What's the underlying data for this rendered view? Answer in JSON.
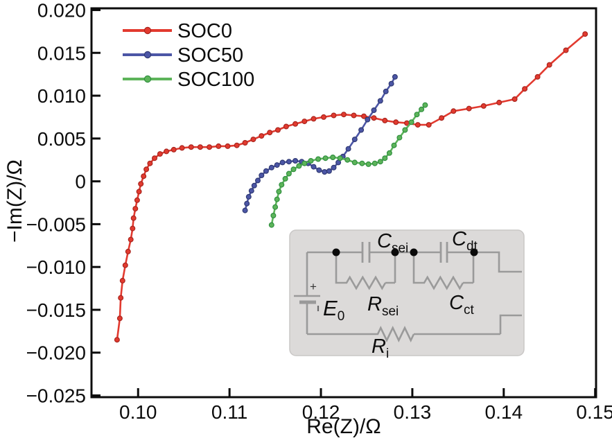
{
  "chart_data": {
    "type": "line",
    "title": "",
    "xlabel": "Re(Z)/Ω",
    "ylabel": "−Im(Z)/Ω",
    "xlim": [
      0.0949,
      0.1501
    ],
    "ylim": [
      -0.0252,
      0.0202
    ],
    "grid": false,
    "legend_position": "top-left",
    "x_ticks": [
      0.1,
      0.11,
      0.12,
      0.13,
      0.14,
      0.15
    ],
    "x_tick_labels": [
      "0.10",
      "0.11",
      "0.12",
      "0.13",
      "0.14",
      "0.15"
    ],
    "y_ticks": [
      0.02,
      0.015,
      0.01,
      0.005,
      0,
      -0.005,
      -0.01,
      -0.015,
      -0.02,
      -0.025
    ],
    "y_tick_labels": [
      "0.020",
      "0.015",
      "0.010",
      "0.005",
      "0",
      "−0.005",
      "−0.010",
      "−0.015",
      "−0.020",
      "−0.025"
    ],
    "series": [
      {
        "name": "SOC0",
        "color": "#e23a2f",
        "edge": "#a8251e",
        "points": [
          [
            0.0977,
            -0.0185
          ],
          [
            0.098,
            -0.016
          ],
          [
            0.0981,
            -0.0136
          ],
          [
            0.0983,
            -0.0116
          ],
          [
            0.0986,
            -0.0098
          ],
          [
            0.0989,
            -0.0082
          ],
          [
            0.0992,
            -0.0068
          ],
          [
            0.0994,
            -0.0055
          ],
          [
            0.0995,
            -0.0043
          ],
          [
            0.0997,
            -0.0032
          ],
          [
            0.0999,
            -0.0022
          ],
          [
            0.1001,
            -0.0012
          ],
          [
            0.1003,
            -0.0003
          ],
          [
            0.1006,
            0.0006
          ],
          [
            0.1009,
            0.0014
          ],
          [
            0.1013,
            0.0021
          ],
          [
            0.1018,
            0.0027
          ],
          [
            0.1024,
            0.0032
          ],
          [
            0.1031,
            0.0035
          ],
          [
            0.1039,
            0.0037
          ],
          [
            0.1048,
            0.0039
          ],
          [
            0.1058,
            0.004
          ],
          [
            0.1068,
            0.004
          ],
          [
            0.1078,
            0.004
          ],
          [
            0.1088,
            0.0041
          ],
          [
            0.1098,
            0.0041
          ],
          [
            0.1108,
            0.0042
          ],
          [
            0.1117,
            0.0045
          ],
          [
            0.1126,
            0.0049
          ],
          [
            0.1135,
            0.0053
          ],
          [
            0.1144,
            0.0057
          ],
          [
            0.1153,
            0.006
          ],
          [
            0.1162,
            0.0064
          ],
          [
            0.1172,
            0.0067
          ],
          [
            0.1182,
            0.007
          ],
          [
            0.1192,
            0.0073
          ],
          [
            0.1203,
            0.0075
          ],
          [
            0.1214,
            0.0077
          ],
          [
            0.1225,
            0.0078
          ],
          [
            0.1236,
            0.0077
          ],
          [
            0.1247,
            0.0076
          ],
          [
            0.1258,
            0.0074
          ],
          [
            0.127,
            0.0071
          ],
          [
            0.1282,
            0.0069
          ],
          [
            0.1294,
            0.0068
          ],
          [
            0.1306,
            0.0066
          ],
          [
            0.1318,
            0.0066
          ],
          [
            0.1332,
            0.0074
          ],
          [
            0.1345,
            0.0082
          ],
          [
            0.1362,
            0.0085
          ],
          [
            0.1378,
            0.0088
          ],
          [
            0.1395,
            0.0092
          ],
          [
            0.1412,
            0.0096
          ],
          [
            0.1423,
            0.0108
          ],
          [
            0.1437,
            0.0122
          ],
          [
            0.145,
            0.0136
          ],
          [
            0.1468,
            0.0153
          ],
          [
            0.1489,
            0.0172
          ]
        ]
      },
      {
        "name": "SOC50",
        "color": "#4c56a6",
        "edge": "#303a73",
        "points": [
          [
            0.1117,
            -0.0034
          ],
          [
            0.1119,
            -0.0026
          ],
          [
            0.1121,
            -0.0018
          ],
          [
            0.1124,
            -0.0011
          ],
          [
            0.1127,
            -0.0005
          ],
          [
            0.1131,
            0.0001
          ],
          [
            0.1135,
            0.0007
          ],
          [
            0.114,
            0.0012
          ],
          [
            0.1146,
            0.0016
          ],
          [
            0.1152,
            0.0019
          ],
          [
            0.1158,
            0.0022
          ],
          [
            0.1165,
            0.0023
          ],
          [
            0.1172,
            0.0024
          ],
          [
            0.1179,
            0.0023
          ],
          [
            0.1186,
            0.0021
          ],
          [
            0.1192,
            0.0017
          ],
          [
            0.1198,
            0.0013
          ],
          [
            0.1204,
            0.0011
          ],
          [
            0.1209,
            0.0012
          ],
          [
            0.1214,
            0.0016
          ],
          [
            0.1219,
            0.0022
          ],
          [
            0.1224,
            0.0029
          ],
          [
            0.123,
            0.0038
          ],
          [
            0.1237,
            0.0049
          ],
          [
            0.1244,
            0.006
          ],
          [
            0.1251,
            0.0072
          ],
          [
            0.1258,
            0.0083
          ],
          [
            0.1265,
            0.0094
          ],
          [
            0.1271,
            0.0105
          ],
          [
            0.1277,
            0.0114
          ],
          [
            0.1281,
            0.0122
          ]
        ]
      },
      {
        "name": "SOC100",
        "color": "#5db45a",
        "edge": "#2f8f3f",
        "points": [
          [
            0.1146,
            -0.0051
          ],
          [
            0.1148,
            -0.004
          ],
          [
            0.115,
            -0.003
          ],
          [
            0.1152,
            -0.0021
          ],
          [
            0.1154,
            -0.0012
          ],
          [
            0.1157,
            -0.0004
          ],
          [
            0.1161,
            0.0003
          ],
          [
            0.1165,
            0.0009
          ],
          [
            0.117,
            0.0014
          ],
          [
            0.1176,
            0.0018
          ],
          [
            0.1182,
            0.0021
          ],
          [
            0.1189,
            0.0024
          ],
          [
            0.1197,
            0.0026
          ],
          [
            0.1205,
            0.0027
          ],
          [
            0.1213,
            0.0028
          ],
          [
            0.1221,
            0.0027
          ],
          [
            0.1229,
            0.0025
          ],
          [
            0.1237,
            0.0022
          ],
          [
            0.1245,
            0.0021
          ],
          [
            0.1252,
            0.002
          ],
          [
            0.1259,
            0.0021
          ],
          [
            0.1265,
            0.0023
          ],
          [
            0.127,
            0.0027
          ],
          [
            0.1275,
            0.0033
          ],
          [
            0.128,
            0.0042
          ],
          [
            0.1286,
            0.0051
          ],
          [
            0.1292,
            0.006
          ],
          [
            0.1299,
            0.0069
          ],
          [
            0.1305,
            0.0078
          ],
          [
            0.131,
            0.0084
          ],
          [
            0.1314,
            0.0089
          ]
        ]
      }
    ]
  },
  "inset_circuit": {
    "background": "#dcdad9",
    "border": "#c9c7c6",
    "wire_color": "#9a9a9a",
    "node_color": "#0a0a0a",
    "labels": {
      "battery_main": "E",
      "battery_sub": "0",
      "plus_sign": "+",
      "cap1_main": "C",
      "cap1_sub": "sei",
      "cap2_main": "C",
      "cap2_sub": "dt",
      "res1_main": "R",
      "res1_sub": "sei",
      "res2_main": "C",
      "res2_sub": "ct",
      "res_bottom_main": "R",
      "res_bottom_sub": "i"
    }
  },
  "style": {
    "axis_color": "#0c0c0c",
    "background": "#ffffff"
  }
}
